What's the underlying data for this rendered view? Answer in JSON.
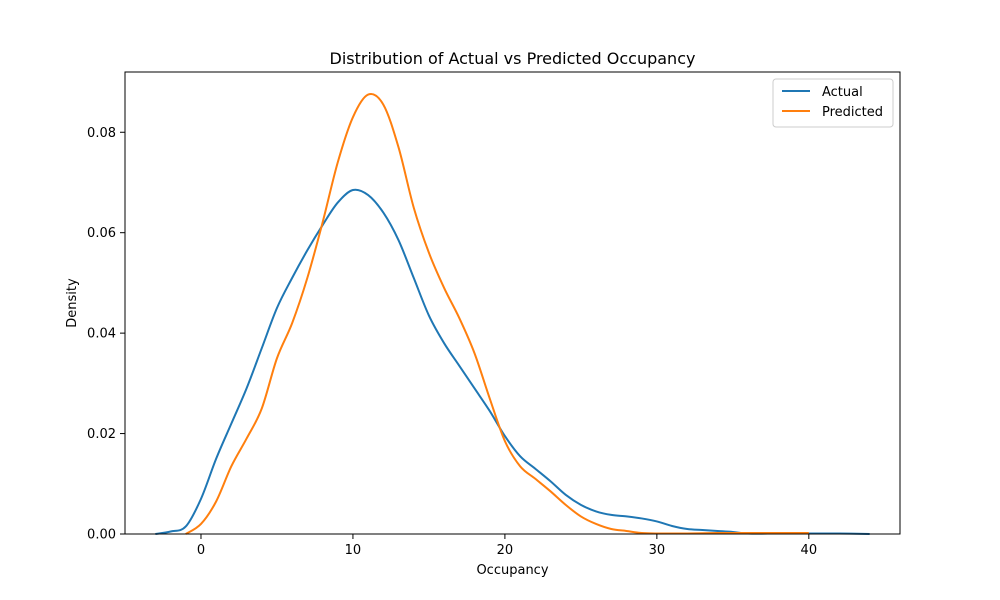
{
  "chart_data": {
    "type": "line",
    "title": "Distribution of Actual vs Predicted Occupancy",
    "xlabel": "Occupancy",
    "ylabel": "Density",
    "xlim": [
      -5,
      46
    ],
    "ylim": [
      0,
      0.092
    ],
    "xticks": [
      0,
      10,
      20,
      30,
      40
    ],
    "xtick_labels": [
      "0",
      "10",
      "20",
      "30",
      "40"
    ],
    "yticks": [
      0,
      0.02,
      0.04,
      0.06,
      0.08
    ],
    "ytick_labels": [
      "0.00",
      "0.02",
      "0.04",
      "0.06",
      "0.08"
    ],
    "grid": false,
    "legend_position": "top-right",
    "series": [
      {
        "name": "Actual",
        "color": "#1f77b4",
        "points": [
          [
            -3,
            0.0
          ],
          [
            -2,
            0.0005
          ],
          [
            -1,
            0.0015
          ],
          [
            0,
            0.007
          ],
          [
            1,
            0.015
          ],
          [
            2,
            0.022
          ],
          [
            3,
            0.029
          ],
          [
            4,
            0.037
          ],
          [
            5,
            0.045
          ],
          [
            6,
            0.051
          ],
          [
            7,
            0.0565
          ],
          [
            8,
            0.0615
          ],
          [
            9,
            0.066
          ],
          [
            10,
            0.0685
          ],
          [
            11,
            0.0675
          ],
          [
            12,
            0.064
          ],
          [
            13,
            0.0585
          ],
          [
            14,
            0.051
          ],
          [
            15,
            0.0435
          ],
          [
            16,
            0.038
          ],
          [
            17,
            0.0335
          ],
          [
            18,
            0.029
          ],
          [
            19,
            0.0245
          ],
          [
            20,
            0.0195
          ],
          [
            21,
            0.0155
          ],
          [
            22,
            0.013
          ],
          [
            23,
            0.0105
          ],
          [
            24,
            0.0078
          ],
          [
            25,
            0.0058
          ],
          [
            26,
            0.0045
          ],
          [
            27,
            0.0038
          ],
          [
            28,
            0.0035
          ],
          [
            29,
            0.0031
          ],
          [
            30,
            0.0025
          ],
          [
            31,
            0.0016
          ],
          [
            32,
            0.001
          ],
          [
            33,
            0.0008
          ],
          [
            34,
            0.0006
          ],
          [
            35,
            0.0004
          ],
          [
            36,
            0.0001
          ],
          [
            38,
            0.0001
          ],
          [
            40,
            0.0001
          ],
          [
            42,
            0.0001
          ],
          [
            44,
            0.0
          ]
        ]
      },
      {
        "name": "Predicted",
        "color": "#ff7f0e",
        "points": [
          [
            -1,
            0.0
          ],
          [
            0,
            0.002
          ],
          [
            1,
            0.0065
          ],
          [
            2,
            0.0135
          ],
          [
            3,
            0.019
          ],
          [
            4,
            0.025
          ],
          [
            5,
            0.035
          ],
          [
            6,
            0.042
          ],
          [
            7,
            0.051
          ],
          [
            8,
            0.062
          ],
          [
            9,
            0.074
          ],
          [
            10,
            0.083
          ],
          [
            11,
            0.0875
          ],
          [
            12,
            0.0855
          ],
          [
            13,
            0.077
          ],
          [
            14,
            0.065
          ],
          [
            15,
            0.056
          ],
          [
            16,
            0.049
          ],
          [
            17,
            0.043
          ],
          [
            18,
            0.036
          ],
          [
            19,
            0.027
          ],
          [
            20,
            0.0185
          ],
          [
            21,
            0.0135
          ],
          [
            22,
            0.011
          ],
          [
            23,
            0.0085
          ],
          [
            24,
            0.0058
          ],
          [
            25,
            0.0035
          ],
          [
            26,
            0.002
          ],
          [
            27,
            0.001
          ],
          [
            28,
            0.0006
          ],
          [
            29,
            0.0002
          ],
          [
            30,
            0.0001
          ],
          [
            32,
            0.0001
          ],
          [
            34,
            0.0002
          ],
          [
            36,
            0.0002
          ],
          [
            38,
            0.0002
          ],
          [
            40,
            0.0002
          ]
        ]
      }
    ]
  }
}
